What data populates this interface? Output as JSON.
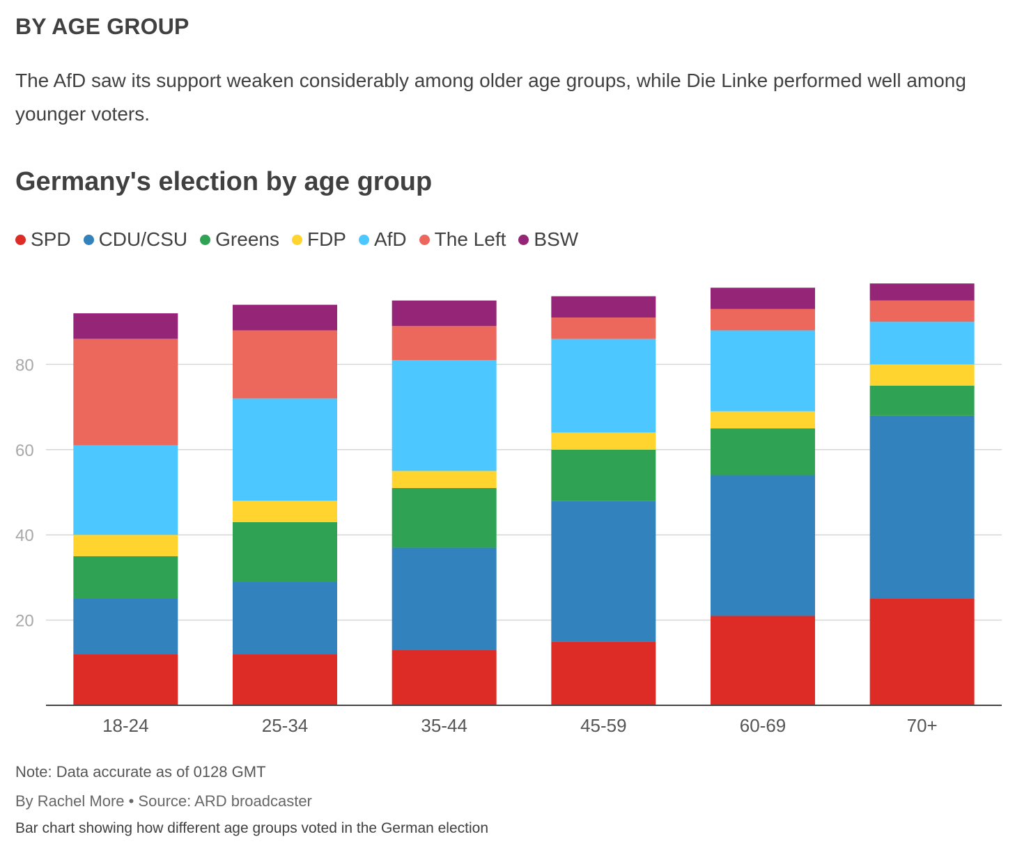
{
  "section_heading": "BY AGE GROUP",
  "intro": "The AfD saw its support weaken considerably among older age groups, while Die Linke performed well among younger voters.",
  "chart_data": {
    "type": "bar",
    "stacked": true,
    "title": "Germany's election by age group",
    "xlabel": "",
    "ylabel": "",
    "ylim": [
      0,
      100
    ],
    "yticks": [
      20,
      40,
      60,
      80
    ],
    "grid": true,
    "legend_position": "top-left",
    "categories": [
      "18-24",
      "25-34",
      "35-44",
      "45-59",
      "60-69",
      "70+"
    ],
    "series": [
      {
        "name": "SPD",
        "color": "#dd2c25",
        "values": [
          12,
          12,
          13,
          15,
          21,
          25
        ]
      },
      {
        "name": "CDU/CSU",
        "color": "#3282be",
        "values": [
          13,
          17,
          24,
          33,
          33,
          43
        ]
      },
      {
        "name": "Greens",
        "color": "#2fa353",
        "values": [
          10,
          14,
          14,
          12,
          11,
          7
        ]
      },
      {
        "name": "FDP",
        "color": "#ffd42f",
        "values": [
          5,
          5,
          4,
          4,
          4,
          5
        ]
      },
      {
        "name": "AfD",
        "color": "#4cc7ff",
        "values": [
          21,
          24,
          26,
          22,
          19,
          10
        ]
      },
      {
        "name": "The Left",
        "color": "#ec685c",
        "values": [
          25,
          16,
          8,
          5,
          5,
          5
        ]
      },
      {
        "name": "BSW",
        "color": "#952677",
        "values": [
          6,
          6,
          6,
          5,
          5,
          4
        ]
      }
    ]
  },
  "footer": {
    "note": "Note: Data accurate as of 0128 GMT",
    "credit": "By Rachel More • Source: ARD broadcaster",
    "alt_text": "Bar chart showing how different age groups voted in the German election"
  }
}
